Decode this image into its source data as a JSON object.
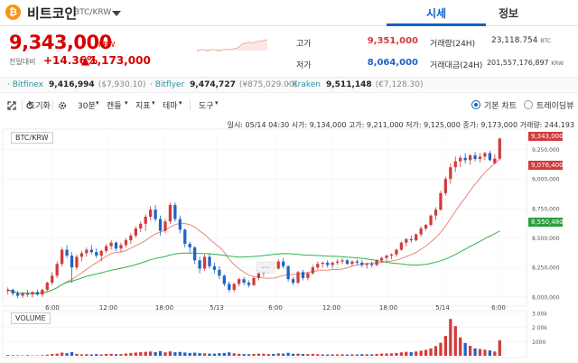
{
  "header": {
    "coin_logo": "₿",
    "coin_name": "비트코인",
    "pair": "BTC/KRW",
    "tabs": [
      {
        "label": "시세",
        "active": true
      },
      {
        "label": "정보",
        "active": false
      }
    ]
  },
  "summary": {
    "price": "9,343,000",
    "currency": "KRW",
    "prev_label": "전일대비",
    "change_pct": "+14.36%",
    "change_abs": "▲1,173,000",
    "high_label": "고가",
    "high": "9,351,000",
    "low_label": "저가",
    "low": "8,064,000",
    "volume_label": "거래량(24H)",
    "volume": "23,118.754",
    "volume_unit": "BTC",
    "amount_label": "거래대금(24H)",
    "amount": "201,557,176,897",
    "amount_unit": "KRW"
  },
  "exchanges": [
    {
      "name": "· Bitfinex",
      "price": "9,416,994",
      "usd": "($7,930.10)"
    },
    {
      "name": "· Bitflyer",
      "price": "9,474,727",
      "usd": "(¥875,029.00)"
    },
    {
      "name": "· Kraken",
      "price": "9,511,148",
      "usd": "(€7,128.30)"
    }
  ],
  "toolbar": {
    "expand_icon": "expand-icon",
    "reset": "초기화",
    "interval": "30분",
    "candle": "캔들",
    "indicator": "지표",
    "theme": "테마",
    "tools": "도구",
    "basic_chart": "기본 차트",
    "tradingview": "트레이딩뷰"
  },
  "ohlc": {
    "text": "일시: 05/14 04:30 시가: 9,134,000 고가: 9,211,000 저가: 9,125,000 종가: 9,173,000 거래량: 244.193"
  },
  "chart": {
    "pair_label": "BTC/KRW",
    "volume_label": "VOLUME",
    "tags": {
      "price": "9,343,000",
      "ma1": "9,076,400",
      "ma2": "8,550,480"
    },
    "colors": {
      "up": "#d23b3b",
      "down": "#1e63c8",
      "ma_short": "#e58a7a",
      "ma_long": "#2fb34a",
      "tag_up": "#d23b3b",
      "tag_green": "#2a9d3f"
    }
  },
  "chart_data": {
    "type": "candlestick",
    "title": "BTC/KRW",
    "ylabel": "",
    "ylim": [
      7960000,
      9400000
    ],
    "y_ticks": [
      "9,250,000",
      "9,000,000",
      "8,750,000",
      "8,500,000",
      "8,250,000",
      "8,000,000"
    ],
    "x_ticks": [
      "6:00",
      "12:00",
      "18:00",
      "5/13",
      "6:00",
      "12:00",
      "18:00",
      "5/14",
      "6:00"
    ],
    "candles": [
      [
        8050000,
        8080000,
        8020000,
        8060000
      ],
      [
        8060000,
        8070000,
        8010000,
        8030000
      ],
      [
        8030000,
        8050000,
        7990000,
        8010000
      ],
      [
        8010000,
        8040000,
        7990000,
        8030000
      ],
      [
        8030000,
        8060000,
        8000000,
        8020000
      ],
      [
        8020000,
        8050000,
        7995000,
        8040000
      ],
      [
        8040000,
        8060000,
        8010000,
        8020000
      ],
      [
        8020000,
        8070000,
        8000000,
        8060000
      ],
      [
        8060000,
        8130000,
        8050000,
        8120000
      ],
      [
        8120000,
        8210000,
        8100000,
        8180000
      ],
      [
        8180000,
        8300000,
        8160000,
        8280000
      ],
      [
        8280000,
        8420000,
        8260000,
        8400000
      ],
      [
        8400000,
        8440000,
        8330000,
        8350000
      ],
      [
        8350000,
        8380000,
        8120000,
        8250000
      ],
      [
        8250000,
        8360000,
        8230000,
        8340000
      ],
      [
        8340000,
        8390000,
        8300000,
        8370000
      ],
      [
        8370000,
        8420000,
        8340000,
        8400000
      ],
      [
        8400000,
        8440000,
        8360000,
        8380000
      ],
      [
        8380000,
        8410000,
        8330000,
        8350000
      ],
      [
        8350000,
        8400000,
        8300000,
        8390000
      ],
      [
        8390000,
        8450000,
        8370000,
        8430000
      ],
      [
        8430000,
        8480000,
        8400000,
        8460000
      ],
      [
        8460000,
        8470000,
        8390000,
        8410000
      ],
      [
        8410000,
        8460000,
        8380000,
        8440000
      ],
      [
        8440000,
        8500000,
        8420000,
        8480000
      ],
      [
        8480000,
        8540000,
        8450000,
        8520000
      ],
      [
        8520000,
        8600000,
        8500000,
        8580000
      ],
      [
        8580000,
        8640000,
        8550000,
        8620000
      ],
      [
        8620000,
        8700000,
        8560000,
        8680000
      ],
      [
        8680000,
        8770000,
        8650000,
        8740000
      ],
      [
        8740000,
        8780000,
        8640000,
        8660000
      ],
      [
        8660000,
        8690000,
        8520000,
        8560000
      ],
      [
        8560000,
        8660000,
        8540000,
        8640000
      ],
      [
        8640000,
        8800000,
        8620000,
        8780000
      ],
      [
        8780000,
        8800000,
        8640000,
        8660000
      ],
      [
        8660000,
        8690000,
        8540000,
        8570000
      ],
      [
        8570000,
        8580000,
        8420000,
        8450000
      ],
      [
        8450000,
        8470000,
        8380000,
        8420000
      ],
      [
        8420000,
        8430000,
        8280000,
        8310000
      ],
      [
        8310000,
        8340000,
        8200000,
        8240000
      ],
      [
        8240000,
        8360000,
        8220000,
        8340000
      ],
      [
        8340000,
        8370000,
        8240000,
        8260000
      ],
      [
        8260000,
        8290000,
        8200000,
        8230000
      ],
      [
        8230000,
        8260000,
        8150000,
        8180000
      ],
      [
        8180000,
        8190000,
        8090000,
        8110000
      ],
      [
        8110000,
        8130000,
        8040000,
        8060000
      ],
      [
        8060000,
        8120000,
        8040000,
        8110000
      ],
      [
        8110000,
        8160000,
        8090000,
        8150000
      ],
      [
        8150000,
        8170000,
        8100000,
        8120000
      ],
      [
        8120000,
        8140000,
        8080000,
        8100000
      ],
      [
        8100000,
        8170000,
        8090000,
        8160000
      ],
      [
        8160000,
        8220000,
        8140000,
        8200000
      ],
      [
        8200000,
        8240000,
        8170000,
        8230000
      ],
      [
        8230000,
        8260000,
        8200000,
        8250000
      ],
      [
        8250000,
        8280000,
        8220000,
        8240000
      ],
      [
        8240000,
        8320000,
        8230000,
        8300000
      ],
      [
        8300000,
        8330000,
        8240000,
        8260000
      ],
      [
        8260000,
        8270000,
        8130000,
        8150000
      ],
      [
        8150000,
        8170000,
        8100000,
        8120000
      ],
      [
        8120000,
        8220000,
        8110000,
        8210000
      ],
      [
        8210000,
        8230000,
        8140000,
        8160000
      ],
      [
        8160000,
        8210000,
        8140000,
        8200000
      ],
      [
        8200000,
        8270000,
        8190000,
        8250000
      ],
      [
        8250000,
        8300000,
        8230000,
        8280000
      ],
      [
        8280000,
        8300000,
        8250000,
        8290000
      ],
      [
        8290000,
        8310000,
        8250000,
        8270000
      ],
      [
        8270000,
        8300000,
        8240000,
        8290000
      ],
      [
        8290000,
        8320000,
        8270000,
        8300000
      ],
      [
        8300000,
        8330000,
        8280000,
        8310000
      ],
      [
        8310000,
        8320000,
        8270000,
        8280000
      ],
      [
        8280000,
        8310000,
        8260000,
        8300000
      ],
      [
        8300000,
        8320000,
        8270000,
        8290000
      ],
      [
        8290000,
        8310000,
        8250000,
        8270000
      ],
      [
        8270000,
        8290000,
        8240000,
        8280000
      ],
      [
        8280000,
        8300000,
        8250000,
        8270000
      ],
      [
        8270000,
        8320000,
        8260000,
        8310000
      ],
      [
        8310000,
        8340000,
        8290000,
        8330000
      ],
      [
        8330000,
        8360000,
        8300000,
        8350000
      ],
      [
        8350000,
        8370000,
        8320000,
        8360000
      ],
      [
        8360000,
        8410000,
        8340000,
        8400000
      ],
      [
        8400000,
        8470000,
        8390000,
        8460000
      ],
      [
        8460000,
        8500000,
        8430000,
        8490000
      ],
      [
        8490000,
        8520000,
        8460000,
        8480000
      ],
      [
        8480000,
        8540000,
        8470000,
        8530000
      ],
      [
        8530000,
        8600000,
        8510000,
        8580000
      ],
      [
        8580000,
        8620000,
        8560000,
        8610000
      ],
      [
        8610000,
        8700000,
        8600000,
        8690000
      ],
      [
        8690000,
        8760000,
        8650000,
        8740000
      ],
      [
        8740000,
        8900000,
        8730000,
        8880000
      ],
      [
        8880000,
        9020000,
        8860000,
        9000000
      ],
      [
        9000000,
        9130000,
        8960000,
        9100000
      ],
      [
        9100000,
        9190000,
        9060000,
        9150000
      ],
      [
        9150000,
        9200000,
        9100000,
        9180000
      ],
      [
        9180000,
        9220000,
        9130000,
        9160000
      ],
      [
        9160000,
        9210000,
        9120000,
        9200000
      ],
      [
        9200000,
        9230000,
        9150000,
        9170000
      ],
      [
        9170000,
        9220000,
        9140000,
        9190000
      ],
      [
        9190000,
        9230000,
        9160000,
        9220000
      ],
      [
        9220000,
        9240000,
        9150000,
        9160000
      ],
      [
        9134000,
        9211000,
        9125000,
        9173000
      ],
      [
        9173000,
        9351000,
        9160000,
        9343000
      ]
    ],
    "volumes": [
      60,
      40,
      35,
      30,
      45,
      30,
      25,
      40,
      80,
      120,
      150,
      220,
      180,
      260,
      140,
      100,
      110,
      90,
      120,
      100,
      130,
      140,
      110,
      120,
      160,
      200,
      230,
      250,
      280,
      300,
      260,
      330,
      240,
      310,
      250,
      270,
      230,
      200,
      220,
      190,
      170,
      160,
      150,
      180,
      200,
      240,
      170,
      140,
      120,
      110,
      130,
      150,
      140,
      120,
      130,
      170,
      150,
      210,
      140,
      150,
      130,
      120,
      130,
      110,
      100,
      90,
      100,
      95,
      105,
      90,
      100,
      95,
      110,
      105,
      100,
      130,
      150,
      160,
      170,
      200,
      240,
      280,
      250,
      300,
      360,
      420,
      520,
      680,
      920,
      1400,
      2600,
      2100,
      1300,
      900,
      700,
      520,
      480,
      430,
      380,
      300,
      1100
    ]
  }
}
